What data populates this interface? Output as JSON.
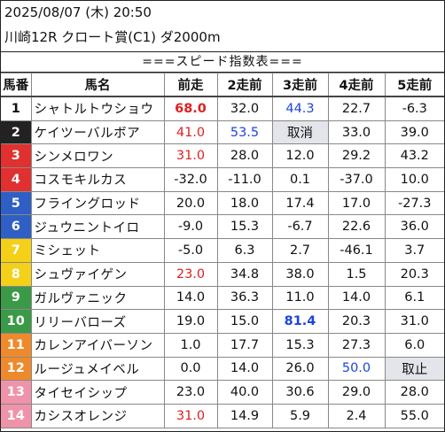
{
  "header": {
    "date_line": "2025/08/07 (木) 20:50",
    "race_line": "川崎12R クロート賞(C1) ダ2000m"
  },
  "banner": "===スピード指数表===",
  "columns": [
    "馬番",
    "馬名",
    "前走",
    "2走前",
    "3走前",
    "4走前",
    "5走前"
  ],
  "colors": {
    "white": "#ffffff",
    "black": "#222222",
    "red": "#e03030",
    "blue": "#2f5fc4",
    "yellow": "#f4d019",
    "green": "#3b9a48",
    "orange": "#ef8a2c",
    "pink": "#ef93a9",
    "value_red": "#e02020",
    "value_blue": "#1e44e0",
    "cancel_bg": "#e3e5ea"
  },
  "rows": [
    {
      "num": "1",
      "frame": "white",
      "name": "シャトルトウショウ",
      "v": [
        "68.0",
        "32.0",
        "44.3",
        "22.7",
        "-6.3"
      ],
      "s": [
        "red-bold",
        "",
        "blue",
        "",
        ""
      ]
    },
    {
      "num": "2",
      "frame": "black",
      "name": "ケイツーバルボア",
      "v": [
        "41.0",
        "53.5",
        "取消",
        "33.0",
        "39.0"
      ],
      "s": [
        "red",
        "blue",
        "gray",
        "",
        ""
      ]
    },
    {
      "num": "3",
      "frame": "red",
      "name": "シンメロワン",
      "v": [
        "31.0",
        "28.0",
        "12.0",
        "29.2",
        "43.2"
      ],
      "s": [
        "red",
        "",
        "",
        "",
        ""
      ]
    },
    {
      "num": "4",
      "frame": "red",
      "name": "コスモキルカス",
      "v": [
        "-32.0",
        "-11.0",
        "0.1",
        "-37.0",
        "10.0"
      ],
      "s": [
        "",
        "",
        "",
        "",
        ""
      ]
    },
    {
      "num": "5",
      "frame": "blue",
      "name": "フライングロッド",
      "v": [
        "20.0",
        "18.0",
        "17.4",
        "17.0",
        "-27.3"
      ],
      "s": [
        "",
        "",
        "",
        "",
        ""
      ]
    },
    {
      "num": "6",
      "frame": "blue",
      "name": "ジュウニントイロ",
      "v": [
        "-9.0",
        "15.3",
        "-6.7",
        "22.6",
        "36.0"
      ],
      "s": [
        "",
        "",
        "",
        "",
        ""
      ]
    },
    {
      "num": "7",
      "frame": "yellow",
      "name": "ミシェット",
      "v": [
        "-5.0",
        "6.3",
        "2.7",
        "-46.1",
        "3.7"
      ],
      "s": [
        "",
        "",
        "",
        "",
        ""
      ]
    },
    {
      "num": "8",
      "frame": "yellow",
      "name": "シュヴァイゲン",
      "v": [
        "23.0",
        "34.8",
        "38.0",
        "1.5",
        "20.3"
      ],
      "s": [
        "red",
        "",
        "",
        "",
        ""
      ]
    },
    {
      "num": "9",
      "frame": "green",
      "name": "ガルヴァニック",
      "v": [
        "14.0",
        "36.3",
        "11.0",
        "14.0",
        "6.1"
      ],
      "s": [
        "",
        "",
        "",
        "",
        ""
      ]
    },
    {
      "num": "10",
      "frame": "green",
      "name": "リリーバローズ",
      "v": [
        "19.0",
        "15.0",
        "81.4",
        "20.3",
        "31.0"
      ],
      "s": [
        "",
        "",
        "blue-bold",
        "",
        ""
      ]
    },
    {
      "num": "11",
      "frame": "orange",
      "name": "カレンアイバーソン",
      "v": [
        "1.0",
        "17.7",
        "15.3",
        "27.3",
        "6.0"
      ],
      "s": [
        "",
        "",
        "",
        "",
        ""
      ]
    },
    {
      "num": "12",
      "frame": "orange",
      "name": "ルージュメイベル",
      "v": [
        "0.0",
        "14.0",
        "26.0",
        "50.0",
        "取止"
      ],
      "s": [
        "",
        "",
        "",
        "blue",
        "gray"
      ]
    },
    {
      "num": "13",
      "frame": "pink",
      "name": "タイセイシップ",
      "v": [
        "23.0",
        "40.0",
        "30.6",
        "29.0",
        "28.0"
      ],
      "s": [
        "",
        "",
        "",
        "",
        ""
      ]
    },
    {
      "num": "14",
      "frame": "pink",
      "name": "カシスオレンジ",
      "v": [
        "31.0",
        "14.9",
        "5.9",
        "2.4",
        "55.0"
      ],
      "s": [
        "red",
        "",
        "",
        "",
        ""
      ]
    }
  ]
}
